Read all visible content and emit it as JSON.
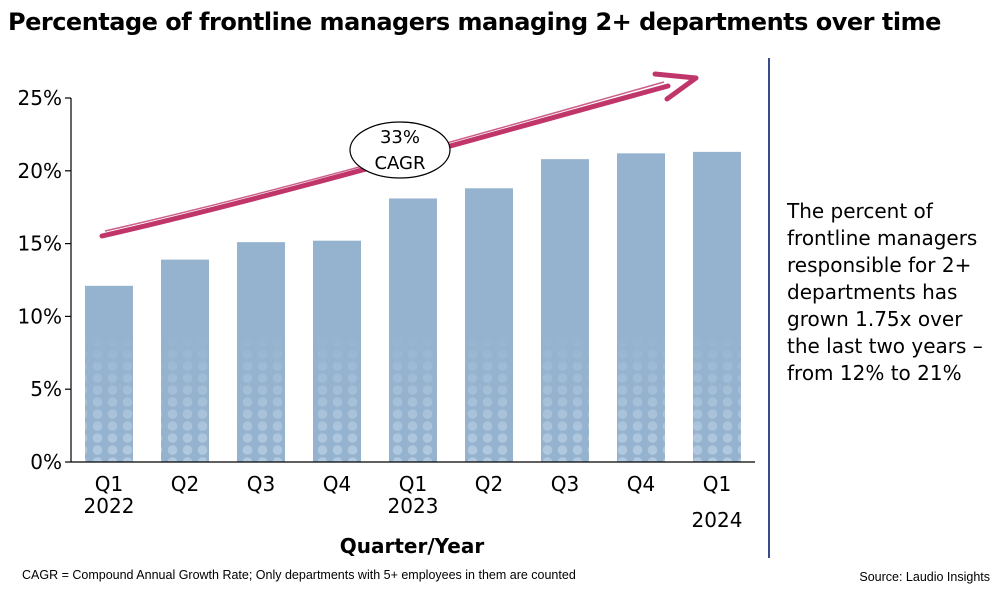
{
  "chart_data": {
    "type": "bar",
    "title": "Percentage of frontline managers managing 2+ departments over time",
    "xlabel": "Quarter/Year",
    "ylabel": "",
    "ylim": [
      0,
      25
    ],
    "yticks": [
      "0%",
      "5%",
      "10%",
      "15%",
      "20%",
      "25%"
    ],
    "yticks_values": [
      0,
      5,
      10,
      15,
      20,
      25
    ],
    "categories": [
      "Q1",
      "Q2",
      "Q3",
      "Q4",
      "Q1",
      "Q2",
      "Q3",
      "Q4",
      "Q1"
    ],
    "year_labels": [
      "2022",
      "",
      "",
      "",
      "2023",
      "",
      "",
      "",
      "2024"
    ],
    "values": [
      12.1,
      13.9,
      15.1,
      15.2,
      18.1,
      18.8,
      20.8,
      21.2,
      21.3
    ],
    "annotation": {
      "line1": "33%",
      "line2": "CAGR"
    },
    "bar_color": "#95b3cf",
    "arrow_color": "#c0366b"
  },
  "note": "The percent of frontline managers responsible for 2+ departments has grown 1.75x over the last two years – from 12% to 21%",
  "footnote": "CAGR = Compound Annual Growth Rate; Only departments with 5+ employees in them are counted",
  "source": "Source: Laudio Insights"
}
